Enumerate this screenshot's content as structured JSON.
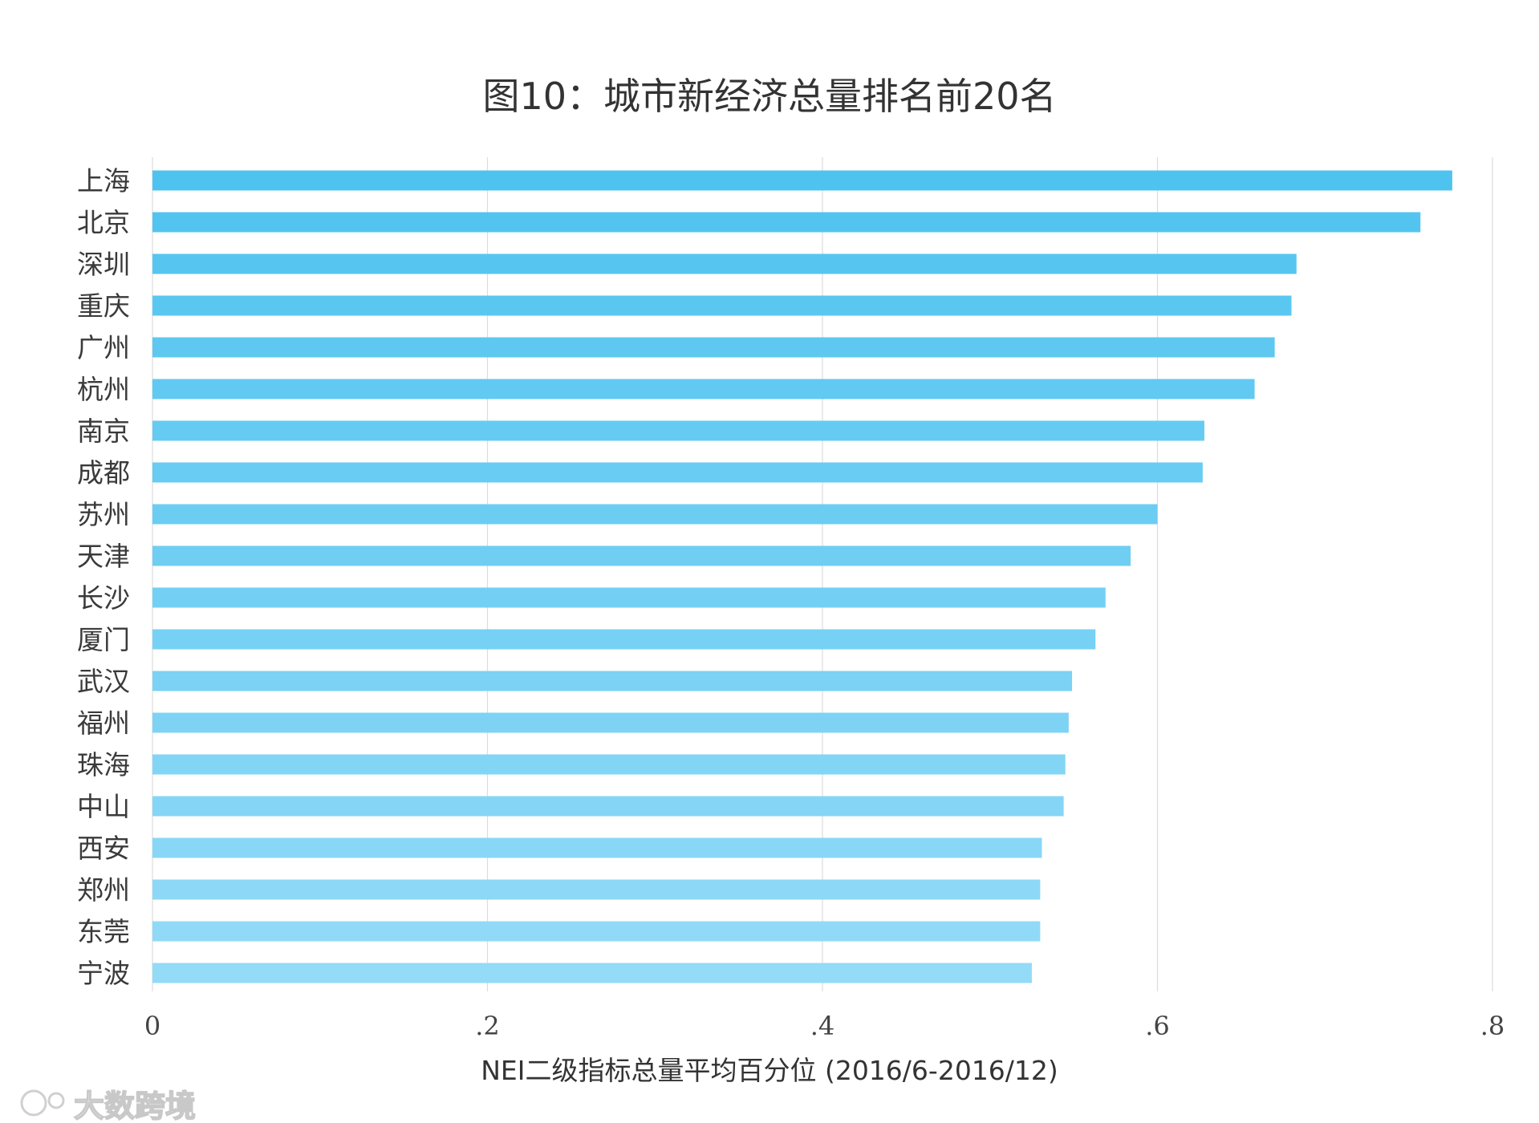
{
  "chart_data": {
    "type": "bar",
    "orientation": "horizontal",
    "title": "图10：城市新经济总量排名前20名",
    "xlabel": "NEI二级指标总量平均百分位 (2016/6-2016/12)",
    "ylabel": "",
    "categories": [
      "上海",
      "北京",
      "深圳",
      "重庆",
      "广州",
      "杭州",
      "南京",
      "成都",
      "苏州",
      "天津",
      "长沙",
      "厦门",
      "武汉",
      "福州",
      "珠海",
      "中山",
      "西安",
      "郑州",
      "东莞",
      "宁波"
    ],
    "values": [
      0.776,
      0.757,
      0.683,
      0.68,
      0.67,
      0.658,
      0.628,
      0.627,
      0.6,
      0.584,
      0.569,
      0.563,
      0.549,
      0.547,
      0.545,
      0.544,
      0.531,
      0.53,
      0.53,
      0.525
    ],
    "xlim": [
      0,
      0.8
    ],
    "xticks": [
      0,
      0.2,
      0.4,
      0.6,
      0.8
    ],
    "xtick_labels": [
      "0",
      ".2",
      ".4",
      ".6",
      ".8"
    ],
    "grid": "vertical",
    "legend": "none",
    "colors": {
      "bar_top": "#4fc3f0",
      "bar_bottom": "#94dbf7",
      "grid": "#dcdcdc"
    }
  },
  "watermark": {
    "text": "大数跨境"
  }
}
